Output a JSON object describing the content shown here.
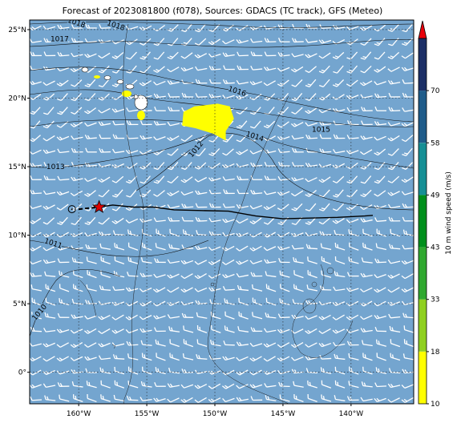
{
  "title": "Forecast of 2023081800 (f078), Sources: GDACS (TC track), GFS (Meteo)",
  "map": {
    "lon_range": [
      -163.6,
      -135.4
    ],
    "lat_range": [
      -2.3,
      25.7
    ],
    "lon_ticks": [
      {
        "value": -160,
        "label": "160°W"
      },
      {
        "value": -155,
        "label": "155°W"
      },
      {
        "value": -150,
        "label": "150°W"
      },
      {
        "value": -145,
        "label": "145°W"
      },
      {
        "value": -140,
        "label": "140°W"
      }
    ],
    "lat_ticks": [
      {
        "value": 0,
        "label": "0°"
      },
      {
        "value": 5,
        "label": "5°N"
      },
      {
        "value": 10,
        "label": "10°N"
      },
      {
        "value": 15,
        "label": "15°N"
      },
      {
        "value": 20,
        "label": "20°N"
      },
      {
        "value": 25,
        "label": "25°N"
      }
    ],
    "background_color": "#74a5cf",
    "isobar_labels": [
      {
        "text": "1018",
        "lon": -160.2,
        "lat": 25.4
      },
      {
        "text": "1018",
        "lon": -157.3,
        "lat": 25.2
      },
      {
        "text": "1017",
        "lon": -161.4,
        "lat": 24.2
      },
      {
        "text": "1016",
        "lon": -148.4,
        "lat": 20.4
      },
      {
        "text": "1015",
        "lon": -142.2,
        "lat": 17.6
      },
      {
        "text": "1014",
        "lon": -147.1,
        "lat": 17.1
      },
      {
        "text": "1012",
        "lon": -151.3,
        "lat": 16.2
      },
      {
        "text": "1013",
        "lon": -161.7,
        "lat": 14.9
      },
      {
        "text": "1011",
        "lon": -161.9,
        "lat": 9.3
      },
      {
        "text": "1010",
        "lon": -162.8,
        "lat": 4.3
      }
    ],
    "track": [
      {
        "lon": -160.0,
        "lat": 11.9
      },
      {
        "lon": -158.5,
        "lat": 12.05
      },
      {
        "lon": -157.5,
        "lat": 12.2
      },
      {
        "lon": -156.0,
        "lat": 12.05
      },
      {
        "lon": -154.5,
        "lat": 12.05
      },
      {
        "lon": -153.0,
        "lat": 11.85
      },
      {
        "lon": -151.0,
        "lat": 11.8
      },
      {
        "lon": -149.0,
        "lat": 11.75
      },
      {
        "lon": -147.0,
        "lat": 11.4
      },
      {
        "lon": -145.0,
        "lat": 11.2
      },
      {
        "lon": -143.0,
        "lat": 11.25
      },
      {
        "lon": -141.0,
        "lat": 11.3
      },
      {
        "lon": -139.0,
        "lat": 11.4
      },
      {
        "lon": -138.4,
        "lat": 11.45
      }
    ],
    "track_dashed_until_index": 1,
    "current_position": {
      "lon": -158.5,
      "lat": 12.05
    },
    "origin_marker": {
      "lon": -160.5,
      "lat": 11.9
    },
    "wind_area_yellow": [
      {
        "lon": -152.3,
        "lat": 19.0
      },
      {
        "lon": -151.5,
        "lat": 19.4
      },
      {
        "lon": -149.8,
        "lat": 19.6
      },
      {
        "lon": -148.9,
        "lat": 19.4
      },
      {
        "lon": -148.6,
        "lat": 18.5
      },
      {
        "lon": -149.2,
        "lat": 17.6
      },
      {
        "lon": -149.2,
        "lat": 16.9
      },
      {
        "lon": -150.1,
        "lat": 17.4
      },
      {
        "lon": -151.4,
        "lat": 17.8
      },
      {
        "lon": -152.4,
        "lat": 18.0
      }
    ]
  },
  "colorbar": {
    "label": "10 m wind speed (m/s)",
    "levels": [
      10,
      18,
      33,
      43,
      49,
      58,
      70
    ],
    "colors": [
      "#ffff00",
      "#8fd020",
      "#30a830",
      "#008f1c",
      "#168f95",
      "#1f5c8a",
      "#1c2f66"
    ],
    "extend_color": "#e8000b"
  }
}
